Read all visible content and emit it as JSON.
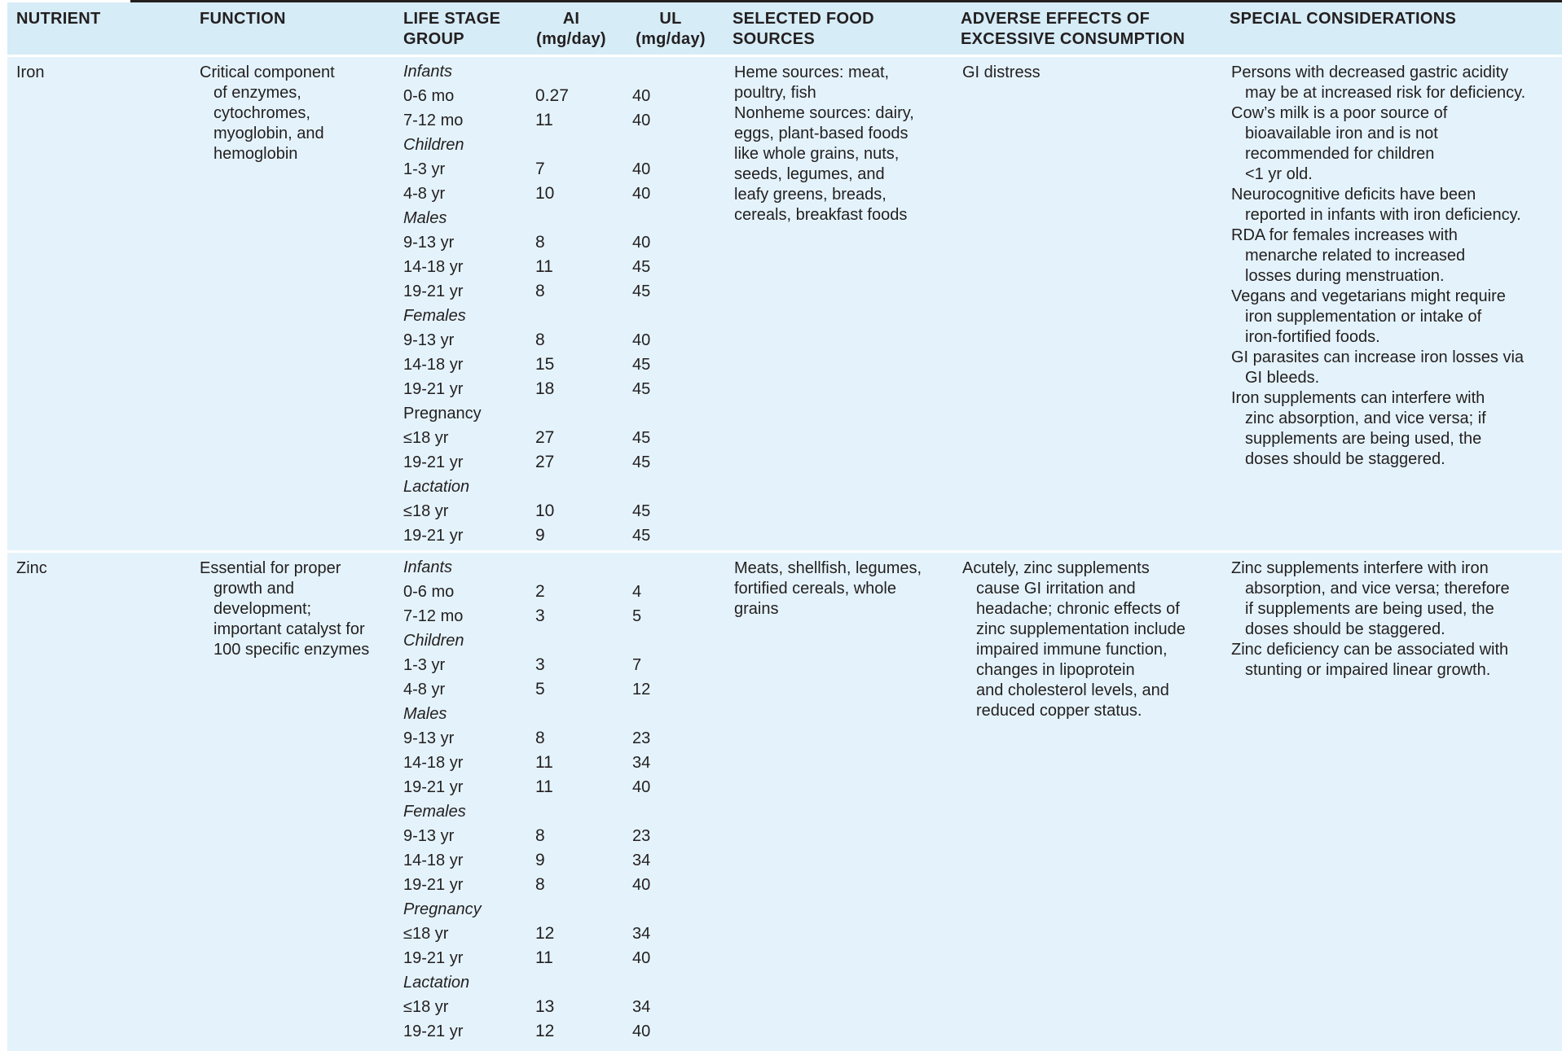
{
  "headers": {
    "nutrient": "NUTRIENT",
    "function": "FUNCTION",
    "life_stage_1": "LIFE STAGE",
    "life_stage_2": "GROUP",
    "ai_1": "AI",
    "ai_2": "(mg/day)",
    "ul_1": "UL",
    "ul_2": "(mg/day)",
    "food_1": "SELECTED FOOD",
    "food_2": "SOURCES",
    "adverse_1": "ADVERSE EFFECTS OF",
    "adverse_2": "EXCESSIVE CONSUMPTION",
    "special": "SPECIAL CONSIDERATIONS"
  },
  "rows": [
    {
      "nutrient": "Iron",
      "function": [
        "Critical component",
        "of enzymes,",
        "cytochromes,",
        "myoglobin, and",
        "hemoglobin"
      ],
      "stages": [
        {
          "label": "Infants",
          "ai": "",
          "ul": ""
        },
        {
          "label": "0-6 mo",
          "ai": "0.27",
          "ul": "40"
        },
        {
          "label": "7-12 mo",
          "ai": "11",
          "ul": "40"
        },
        {
          "label": "Children",
          "ai": "",
          "ul": ""
        },
        {
          "label": "1-3 yr",
          "ai": "7",
          "ul": "40"
        },
        {
          "label": "4-8 yr",
          "ai": "10",
          "ul": "40"
        },
        {
          "label": "Males",
          "ai": "",
          "ul": ""
        },
        {
          "label": "9-13 yr",
          "ai": "8",
          "ul": "40"
        },
        {
          "label": "14-18 yr",
          "ai": "11",
          "ul": "45"
        },
        {
          "label": "19-21 yr",
          "ai": "8",
          "ul": "45"
        },
        {
          "label": "Females",
          "ai": "",
          "ul": ""
        },
        {
          "label": "9-13 yr",
          "ai": "8",
          "ul": "40"
        },
        {
          "label": "14-18 yr",
          "ai": "15",
          "ul": "45"
        },
        {
          "label": "19-21 yr",
          "ai": "18",
          "ul": "45"
        },
        {
          "label": "Pregnancy",
          "ai": "",
          "ul": ""
        },
        {
          "label": "≤18 yr",
          "ai": "27",
          "ul": "45"
        },
        {
          "label": "19-21 yr",
          "ai": "27",
          "ul": "45"
        },
        {
          "label": "Lactation",
          "ai": "",
          "ul": ""
        },
        {
          "label": "≤18 yr",
          "ai": "10",
          "ul": "45"
        },
        {
          "label": "19-21 yr",
          "ai": "9",
          "ul": "45"
        }
      ],
      "food_sources": [
        [
          "Heme sources: meat,",
          "poultry, fish"
        ],
        [
          "Nonheme sources: dairy,",
          "eggs, plant-based foods",
          "like whole grains, nuts,",
          "seeds, legumes, and",
          "leafy greens, breads,",
          "cereals, breakfast foods"
        ]
      ],
      "adverse": [
        [
          "GI distress"
        ]
      ],
      "special": [
        [
          "Persons with decreased gastric acidity",
          "may be at increased risk for deficiency."
        ],
        [
          "Cow’s milk is a poor source of",
          "bioavailable iron and is not",
          "recommended for children",
          "<1 yr old."
        ],
        [
          "Neurocognitive deficits have been",
          "reported in infants with iron deficiency."
        ],
        [
          "RDA for females increases with",
          "menarche related to increased",
          "losses during menstruation."
        ],
        [
          "Vegans and vegetarians might require",
          "iron supplementation or intake of",
          "iron-fortified foods."
        ],
        [
          "GI parasites can increase iron losses via",
          "GI bleeds."
        ],
        [
          "Iron supplements can interfere with",
          "zinc absorption, and vice versa; if",
          "supplements are being used, the",
          "doses should be staggered."
        ]
      ]
    },
    {
      "nutrient": "Zinc",
      "function": [
        "Essential for proper",
        "growth and",
        "development;",
        "important catalyst for",
        "100 specific enzymes"
      ],
      "stages": [
        {
          "label": "Infants",
          "ai": "",
          "ul": ""
        },
        {
          "label": "0-6 mo",
          "ai": "2",
          "ul": "4"
        },
        {
          "label": "7-12 mo",
          "ai": "3",
          "ul": "5"
        },
        {
          "label": "Children",
          "ai": "",
          "ul": ""
        },
        {
          "label": "1-3 yr",
          "ai": "3",
          "ul": "7"
        },
        {
          "label": "4-8 yr",
          "ai": "5",
          "ul": "12"
        },
        {
          "label": "Males",
          "ai": "",
          "ul": ""
        },
        {
          "label": "9-13 yr",
          "ai": "8",
          "ul": "23"
        },
        {
          "label": "14-18 yr",
          "ai": "11",
          "ul": "34"
        },
        {
          "label": "19-21 yr",
          "ai": "11",
          "ul": "40"
        },
        {
          "label": "Females",
          "ai": "",
          "ul": ""
        },
        {
          "label": "9-13 yr",
          "ai": "8",
          "ul": "23"
        },
        {
          "label": "14-18 yr",
          "ai": "9",
          "ul": "34"
        },
        {
          "label": "19-21 yr",
          "ai": "8",
          "ul": "40"
        },
        {
          "label": "Pregnancy",
          "ai": "",
          "ul": ""
        },
        {
          "label": "≤18 yr",
          "ai": "12",
          "ul": "34"
        },
        {
          "label": "19-21 yr",
          "ai": "11",
          "ul": "40"
        },
        {
          "label": "Lactation",
          "ai": "",
          "ul": ""
        },
        {
          "label": "≤18 yr",
          "ai": "13",
          "ul": "34"
        },
        {
          "label": "19-21 yr",
          "ai": "12",
          "ul": "40"
        }
      ],
      "food_sources": [
        [
          "Meats, shellfish, legumes,",
          "fortified cereals, whole",
          "grains"
        ]
      ],
      "adverse": [
        [
          "Acutely, zinc supplements",
          "cause GI irritation and",
          "headache; chronic effects of",
          "zinc supplementation include",
          "impaired immune function,",
          "changes in lipoprotein",
          "and cholesterol levels, and",
          "reduced copper status."
        ]
      ],
      "special": [
        [
          "Zinc supplements interfere with iron",
          "absorption, and vice versa; therefore",
          "if supplements are being used, the",
          "doses should be staggered."
        ],
        [
          "Zinc deficiency can be associated with",
          "stunting or impaired linear growth."
        ]
      ]
    }
  ]
}
